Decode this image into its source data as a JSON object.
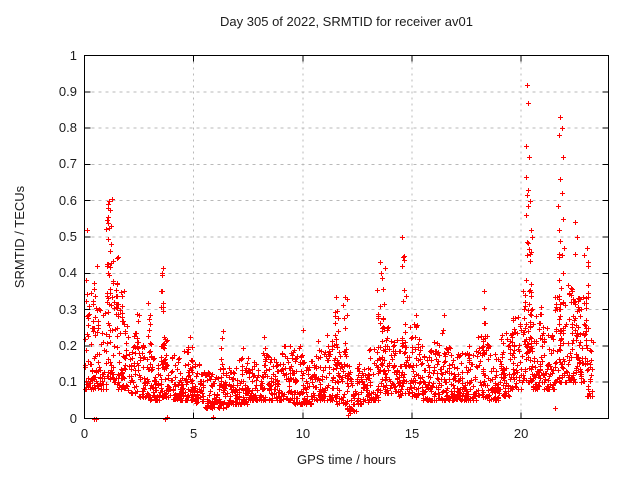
{
  "chart_data": {
    "type": "scatter",
    "title": "Day 305 of 2022, SRMTID for receiver av01",
    "xlabel": "GPS time / hours",
    "ylabel": "SRMTID / TECUs",
    "xlim": [
      0,
      24
    ],
    "ylim": [
      0,
      1
    ],
    "xticks": {
      "values": [
        0,
        5,
        10,
        15,
        20
      ],
      "labels": [
        "0",
        "5",
        "10",
        "15",
        "20"
      ]
    },
    "yticks": {
      "values": [
        0,
        0.1,
        0.2,
        0.3,
        0.4,
        0.5,
        0.6,
        0.7,
        0.8,
        0.9,
        1
      ],
      "labels": [
        "0",
        "0.1",
        "0.2",
        "0.3",
        "0.4",
        "0.5",
        "0.6",
        "0.7",
        "0.8",
        "0.9",
        "1"
      ]
    },
    "grid": true,
    "legend_position": "none",
    "marker": {
      "shape": "plus",
      "color": "#ff0000",
      "size": 5,
      "stroke_width": 1
    },
    "colors": {
      "frame": "#000000",
      "grid": "#b9b9b9",
      "text": "#1c1c1c",
      "background": "#ffffff"
    },
    "data_x_range": [
      0,
      23.3
    ],
    "point_generation": {
      "seed": 305,
      "band_skew": 1.8,
      "band": [
        [
          0.0,
          0.5,
          0.08,
          0.35,
          46
        ],
        [
          0.5,
          1.0,
          0.08,
          0.32,
          46
        ],
        [
          1.0,
          1.5,
          0.1,
          0.38,
          46
        ],
        [
          1.5,
          2.0,
          0.08,
          0.3,
          46
        ],
        [
          2.0,
          2.5,
          0.07,
          0.24,
          46
        ],
        [
          2.5,
          3.0,
          0.06,
          0.22,
          46
        ],
        [
          3.0,
          3.5,
          0.05,
          0.18,
          46
        ],
        [
          3.5,
          4.0,
          0.06,
          0.22,
          46
        ],
        [
          4.0,
          4.5,
          0.05,
          0.18,
          46
        ],
        [
          4.5,
          5.0,
          0.05,
          0.2,
          46
        ],
        [
          5.0,
          5.5,
          0.04,
          0.15,
          46
        ],
        [
          5.5,
          6.0,
          0.03,
          0.13,
          46
        ],
        [
          6.0,
          6.5,
          0.03,
          0.14,
          46
        ],
        [
          6.5,
          7.0,
          0.04,
          0.15,
          46
        ],
        [
          7.0,
          7.5,
          0.04,
          0.17,
          46
        ],
        [
          7.5,
          8.0,
          0.05,
          0.16,
          46
        ],
        [
          8.0,
          8.5,
          0.05,
          0.18,
          46
        ],
        [
          8.5,
          9.0,
          0.05,
          0.17,
          46
        ],
        [
          9.0,
          9.5,
          0.05,
          0.2,
          46
        ],
        [
          9.5,
          10.0,
          0.04,
          0.2,
          46
        ],
        [
          10.0,
          10.5,
          0.04,
          0.16,
          46
        ],
        [
          10.5,
          11.0,
          0.05,
          0.18,
          46
        ],
        [
          11.0,
          11.5,
          0.05,
          0.24,
          46
        ],
        [
          11.5,
          12.0,
          0.04,
          0.22,
          46
        ],
        [
          12.0,
          12.5,
          0.02,
          0.15,
          46
        ],
        [
          12.5,
          13.0,
          0.04,
          0.16,
          46
        ],
        [
          13.0,
          13.5,
          0.05,
          0.2,
          46
        ],
        [
          13.5,
          14.0,
          0.07,
          0.28,
          46
        ],
        [
          14.0,
          14.5,
          0.06,
          0.22,
          46
        ],
        [
          14.5,
          15.0,
          0.07,
          0.28,
          46
        ],
        [
          15.0,
          15.5,
          0.06,
          0.24,
          46
        ],
        [
          15.5,
          16.0,
          0.05,
          0.2,
          46
        ],
        [
          16.0,
          16.5,
          0.05,
          0.22,
          46
        ],
        [
          16.5,
          17.0,
          0.05,
          0.2,
          46
        ],
        [
          17.0,
          17.5,
          0.05,
          0.18,
          46
        ],
        [
          17.5,
          18.0,
          0.05,
          0.2,
          46
        ],
        [
          18.0,
          18.5,
          0.06,
          0.24,
          46
        ],
        [
          18.5,
          19.0,
          0.05,
          0.2,
          46
        ],
        [
          19.0,
          19.5,
          0.06,
          0.22,
          46
        ],
        [
          19.5,
          20.0,
          0.08,
          0.28,
          46
        ],
        [
          20.0,
          20.5,
          0.1,
          0.38,
          48
        ],
        [
          20.5,
          21.0,
          0.08,
          0.3,
          46
        ],
        [
          21.0,
          21.5,
          0.08,
          0.26,
          46
        ],
        [
          21.5,
          22.0,
          0.1,
          0.35,
          48
        ],
        [
          22.0,
          22.5,
          0.1,
          0.38,
          48
        ],
        [
          22.5,
          23.0,
          0.1,
          0.35,
          46
        ],
        [
          23.0,
          23.3,
          0.06,
          0.22,
          26
        ]
      ],
      "clusters": [
        [
          0.3,
          0.25,
          0.2,
          0.42,
          14
        ],
        [
          1.15,
          0.15,
          0.3,
          0.61,
          26
        ],
        [
          1.45,
          0.1,
          0.25,
          0.45,
          10
        ],
        [
          1.7,
          0.15,
          0.22,
          0.4,
          8
        ],
        [
          2.45,
          0.1,
          0.18,
          0.3,
          6
        ],
        [
          2.95,
          0.1,
          0.2,
          0.33,
          7
        ],
        [
          3.6,
          0.12,
          0.15,
          0.41,
          16
        ],
        [
          4.9,
          0.08,
          0.12,
          0.26,
          6
        ],
        [
          6.3,
          0.07,
          0.1,
          0.25,
          6
        ],
        [
          7.2,
          0.1,
          0.1,
          0.2,
          5
        ],
        [
          8.3,
          0.1,
          0.12,
          0.25,
          7
        ],
        [
          9.6,
          0.12,
          0.1,
          0.26,
          8
        ],
        [
          9.95,
          0.08,
          0.12,
          0.27,
          5
        ],
        [
          10.8,
          0.1,
          0.1,
          0.22,
          5
        ],
        [
          11.45,
          0.15,
          0.15,
          0.33,
          12
        ],
        [
          11.95,
          0.1,
          0.15,
          0.33,
          8
        ],
        [
          13.6,
          0.2,
          0.15,
          0.42,
          16
        ],
        [
          14.6,
          0.12,
          0.15,
          0.46,
          12
        ],
        [
          15.15,
          0.12,
          0.12,
          0.3,
          8
        ],
        [
          16.5,
          0.12,
          0.1,
          0.3,
          8
        ],
        [
          17.2,
          0.1,
          0.08,
          0.22,
          5
        ],
        [
          18.3,
          0.1,
          0.12,
          0.35,
          9
        ],
        [
          19.2,
          0.1,
          0.1,
          0.25,
          6
        ],
        [
          19.65,
          0.1,
          0.12,
          0.28,
          7
        ],
        [
          20.3,
          0.2,
          0.18,
          0.5,
          30
        ],
        [
          20.9,
          0.15,
          0.12,
          0.32,
          10
        ],
        [
          21.85,
          0.15,
          0.15,
          0.47,
          18
        ],
        [
          22.5,
          0.2,
          0.15,
          0.5,
          20
        ],
        [
          23.0,
          0.1,
          0.15,
          0.45,
          10
        ]
      ],
      "outliers": [
        [
          0.1,
          0.52
        ],
        [
          0.55,
          0.42
        ],
        [
          0.45,
          0.0
        ],
        [
          0.52,
          0.0
        ],
        [
          3.7,
          0.0
        ],
        [
          3.78,
          0.005
        ],
        [
          5.9,
          0.005
        ],
        [
          12.05,
          0.01
        ],
        [
          12.1,
          0.02
        ],
        [
          12.15,
          0.015
        ],
        [
          21.55,
          0.03
        ],
        [
          3.55,
          0.4
        ],
        [
          3.6,
          0.415
        ],
        [
          11.5,
          0.335
        ],
        [
          11.95,
          0.335
        ],
        [
          12.0,
          0.33
        ],
        [
          13.55,
          0.43
        ],
        [
          13.75,
          0.415
        ],
        [
          13.6,
          0.4
        ],
        [
          14.55,
          0.5
        ],
        [
          14.6,
          0.445
        ],
        [
          18.3,
          0.35
        ],
        [
          20.25,
          0.92
        ],
        [
          20.3,
          0.87
        ],
        [
          20.2,
          0.75
        ],
        [
          20.35,
          0.72
        ],
        [
          20.2,
          0.665
        ],
        [
          20.3,
          0.63
        ],
        [
          20.25,
          0.615
        ],
        [
          20.4,
          0.6
        ],
        [
          20.3,
          0.585
        ],
        [
          20.2,
          0.56
        ],
        [
          20.45,
          0.52
        ],
        [
          20.5,
          0.5
        ],
        [
          21.8,
          0.83
        ],
        [
          21.85,
          0.8
        ],
        [
          21.75,
          0.78
        ],
        [
          21.9,
          0.72
        ],
        [
          21.8,
          0.66
        ],
        [
          21.85,
          0.62
        ],
        [
          21.7,
          0.585
        ],
        [
          21.9,
          0.55
        ],
        [
          21.75,
          0.52
        ],
        [
          21.8,
          0.49
        ],
        [
          21.95,
          0.47
        ],
        [
          22.45,
          0.54
        ],
        [
          22.55,
          0.5
        ],
        [
          22.9,
          0.45
        ],
        [
          23.0,
          0.47
        ],
        [
          23.05,
          0.42
        ]
      ]
    }
  }
}
